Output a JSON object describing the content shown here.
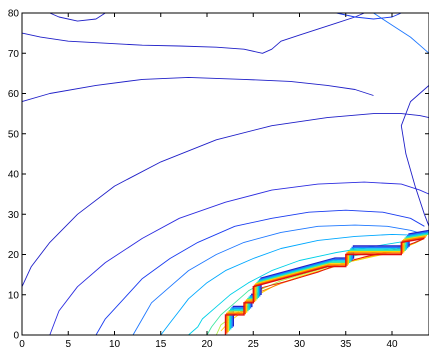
{
  "chart_data": {
    "type": "contour",
    "title": "",
    "xlabel": "",
    "ylabel": "",
    "xlim": [
      0,
      44
    ],
    "ylim": [
      0,
      80
    ],
    "grid": false,
    "legend": "none",
    "colormap": "jet",
    "xticks": [
      0,
      5,
      10,
      15,
      20,
      25,
      30,
      35,
      40
    ],
    "yticks": [
      0,
      10,
      20,
      30,
      40,
      50,
      60,
      70,
      80
    ],
    "xtick_labels": [
      "0",
      "5",
      "10",
      "15",
      "20",
      "25",
      "30",
      "35",
      "40"
    ],
    "ytick_labels": [
      "0",
      "10",
      "20",
      "30",
      "40",
      "50",
      "60",
      "70",
      "80"
    ],
    "source": {
      "x": 43.5,
      "y": 24
    },
    "boundary": [
      [
        22,
        0
      ],
      [
        22,
        5
      ],
      [
        24,
        5
      ],
      [
        24,
        8
      ],
      [
        25,
        8
      ],
      [
        25,
        12
      ],
      [
        33,
        17
      ],
      [
        35,
        17
      ],
      [
        35,
        20
      ],
      [
        41,
        20
      ],
      [
        41,
        23
      ],
      [
        43.5,
        24
      ]
    ],
    "contours": [
      {
        "level": 1,
        "color": "#2020c8",
        "points": [
          [
            0,
            12
          ],
          [
            1,
            17
          ],
          [
            3,
            23
          ],
          [
            6,
            30
          ],
          [
            10,
            37
          ],
          [
            15,
            43
          ],
          [
            21,
            48.5
          ],
          [
            27,
            52
          ],
          [
            33,
            54
          ],
          [
            38,
            55
          ],
          [
            41,
            55
          ],
          [
            43,
            54.5
          ],
          [
            44,
            54
          ]
        ]
      },
      {
        "level": 2,
        "color": "#2d2de0",
        "points": [
          [
            3,
            0
          ],
          [
            4,
            6
          ],
          [
            6,
            12
          ],
          [
            9,
            18
          ],
          [
            13,
            24
          ],
          [
            17,
            29
          ],
          [
            22,
            33
          ],
          [
            27,
            36
          ],
          [
            32,
            37.5
          ],
          [
            37,
            38
          ],
          [
            41,
            37.5
          ],
          [
            43,
            36
          ],
          [
            44,
            35
          ]
        ]
      },
      {
        "level": 3,
        "color": "#1a3cf0",
        "points": [
          [
            8,
            0
          ],
          [
            9,
            4
          ],
          [
            11,
            9
          ],
          [
            13,
            14
          ],
          [
            16,
            19
          ],
          [
            19,
            23
          ],
          [
            23,
            27
          ],
          [
            27,
            29
          ],
          [
            31,
            30.5
          ],
          [
            35,
            31
          ],
          [
            39,
            30.5
          ],
          [
            42,
            29
          ],
          [
            43.5,
            27
          ]
        ]
      },
      {
        "level": 4,
        "color": "#1e78ff",
        "points": [
          [
            12,
            0
          ],
          [
            13,
            4
          ],
          [
            14,
            8
          ],
          [
            16,
            12
          ],
          [
            18,
            16
          ],
          [
            21,
            20
          ],
          [
            24,
            23
          ],
          [
            28,
            25.5
          ],
          [
            32,
            27
          ],
          [
            36,
            27.3
          ],
          [
            39.5,
            27
          ],
          [
            42,
            26
          ],
          [
            43.5,
            25
          ]
        ]
      },
      {
        "level": 5,
        "color": "#00a8ff",
        "points": [
          [
            15,
            0
          ],
          [
            16,
            3
          ],
          [
            17,
            6
          ],
          [
            18,
            9
          ],
          [
            20,
            13
          ],
          [
            22,
            16
          ],
          [
            25,
            19
          ],
          [
            28,
            21.5
          ],
          [
            32,
            23.5
          ],
          [
            36,
            24.5
          ],
          [
            40,
            25
          ],
          [
            42.5,
            24.8
          ],
          [
            43.5,
            24.5
          ]
        ]
      },
      {
        "level": 6,
        "color": "#00d0e8",
        "points": [
          [
            18,
            0
          ],
          [
            19,
            2
          ],
          [
            19.5,
            4
          ],
          [
            21,
            7
          ],
          [
            22.5,
            10
          ],
          [
            24.5,
            13
          ],
          [
            27,
            16
          ],
          [
            30,
            18.5
          ],
          [
            34,
            20.5
          ],
          [
            38,
            22
          ],
          [
            41.5,
            23.3
          ],
          [
            43.5,
            24
          ]
        ]
      },
      {
        "level": 7,
        "color": "#40e8a0",
        "points": [
          [
            20,
            0
          ],
          [
            20.5,
            2
          ],
          [
            21.5,
            5
          ],
          [
            23,
            8
          ],
          [
            24.5,
            11
          ],
          [
            26.5,
            13.5
          ],
          [
            29,
            15.5
          ],
          [
            32,
            17.5
          ],
          [
            35.5,
            19.5
          ],
          [
            39,
            21
          ],
          [
            42,
            22.5
          ],
          [
            43.5,
            24
          ]
        ]
      },
      {
        "level": 8,
        "color": "#b0f040",
        "points": [
          [
            21,
            0
          ],
          [
            21.5,
            2.5
          ],
          [
            23,
            5
          ],
          [
            24.5,
            8.5
          ],
          [
            26,
            11.5
          ],
          [
            28,
            13.5
          ],
          [
            31,
            15.5
          ],
          [
            34,
            17.5
          ],
          [
            37,
            19
          ],
          [
            40,
            20.8
          ],
          [
            42.5,
            22.8
          ],
          [
            43.5,
            24
          ]
        ]
      },
      {
        "level": 9,
        "color": "#ffd000",
        "points": [
          [
            21.5,
            1
          ],
          [
            22.5,
            3.5
          ],
          [
            24,
            6
          ],
          [
            25.5,
            10
          ],
          [
            27.5,
            12.5
          ],
          [
            30,
            14.5
          ],
          [
            33,
            16.5
          ],
          [
            36,
            18.5
          ],
          [
            39,
            20
          ],
          [
            41.5,
            21.8
          ],
          [
            43.5,
            24
          ]
        ]
      },
      {
        "level": 10,
        "color": "#ff7000",
        "points": [
          [
            22,
            3
          ],
          [
            23,
            5
          ],
          [
            24.5,
            7
          ],
          [
            25.5,
            10.5
          ],
          [
            28,
            12.8
          ],
          [
            31,
            15
          ],
          [
            33.5,
            16.8
          ],
          [
            36,
            18.8
          ],
          [
            39.5,
            20.5
          ],
          [
            42,
            22.5
          ],
          [
            43.5,
            24
          ]
        ]
      },
      {
        "level": 11,
        "color": "#e01010",
        "points": [
          [
            22,
            4.5
          ],
          [
            24,
            6
          ],
          [
            25,
            9
          ],
          [
            26,
            11.8
          ],
          [
            29,
            13.6
          ],
          [
            32,
            15.6
          ],
          [
            34,
            17.4
          ],
          [
            37,
            19.4
          ],
          [
            40,
            21
          ],
          [
            42.5,
            23
          ],
          [
            43.5,
            24
          ]
        ]
      },
      {
        "level": 12,
        "color": "#1e78ff",
        "points": [
          [
            38,
            80
          ],
          [
            40,
            77
          ],
          [
            42,
            74
          ],
          [
            43,
            72
          ],
          [
            44,
            70
          ]
        ]
      },
      {
        "level": 13,
        "color": "#2020c8",
        "points": [
          [
            44,
            62
          ],
          [
            42,
            58
          ],
          [
            41,
            52
          ],
          [
            41.5,
            45
          ],
          [
            42.5,
            37
          ],
          [
            43.5,
            30
          ],
          [
            44,
            27
          ]
        ]
      },
      {
        "level": 14,
        "color": "#2020c8",
        "points": [
          [
            0,
            58
          ],
          [
            3,
            60
          ],
          [
            8,
            62
          ],
          [
            13,
            63.5
          ],
          [
            18,
            64
          ],
          [
            24,
            63.5
          ],
          [
            29,
            63
          ],
          [
            33,
            62
          ],
          [
            36,
            61
          ],
          [
            38,
            59.5
          ]
        ]
      },
      {
        "level": 15,
        "color": "#2020c8",
        "points": [
          [
            0,
            75
          ],
          [
            2,
            74
          ],
          [
            5,
            73
          ],
          [
            9,
            72.5
          ],
          [
            13,
            72
          ],
          [
            17,
            71.8
          ],
          [
            21,
            71.5
          ],
          [
            24,
            71
          ],
          [
            26,
            70
          ],
          [
            27,
            71
          ],
          [
            28,
            73
          ],
          [
            30,
            74.5
          ],
          [
            32,
            76
          ],
          [
            34,
            77.5
          ],
          [
            36,
            79
          ],
          [
            37,
            80
          ]
        ]
      },
      {
        "level": 16,
        "color": "#2020c8",
        "points": [
          [
            3,
            80
          ],
          [
            4,
            79
          ],
          [
            6,
            78
          ],
          [
            8,
            78.5
          ],
          [
            9,
            80
          ]
        ]
      },
      {
        "level": 17,
        "color": "#1a3cf0",
        "points": [
          [
            34,
            80
          ],
          [
            36,
            79
          ],
          [
            38,
            78.5
          ],
          [
            40,
            79
          ],
          [
            41,
            80
          ]
        ]
      }
    ]
  }
}
